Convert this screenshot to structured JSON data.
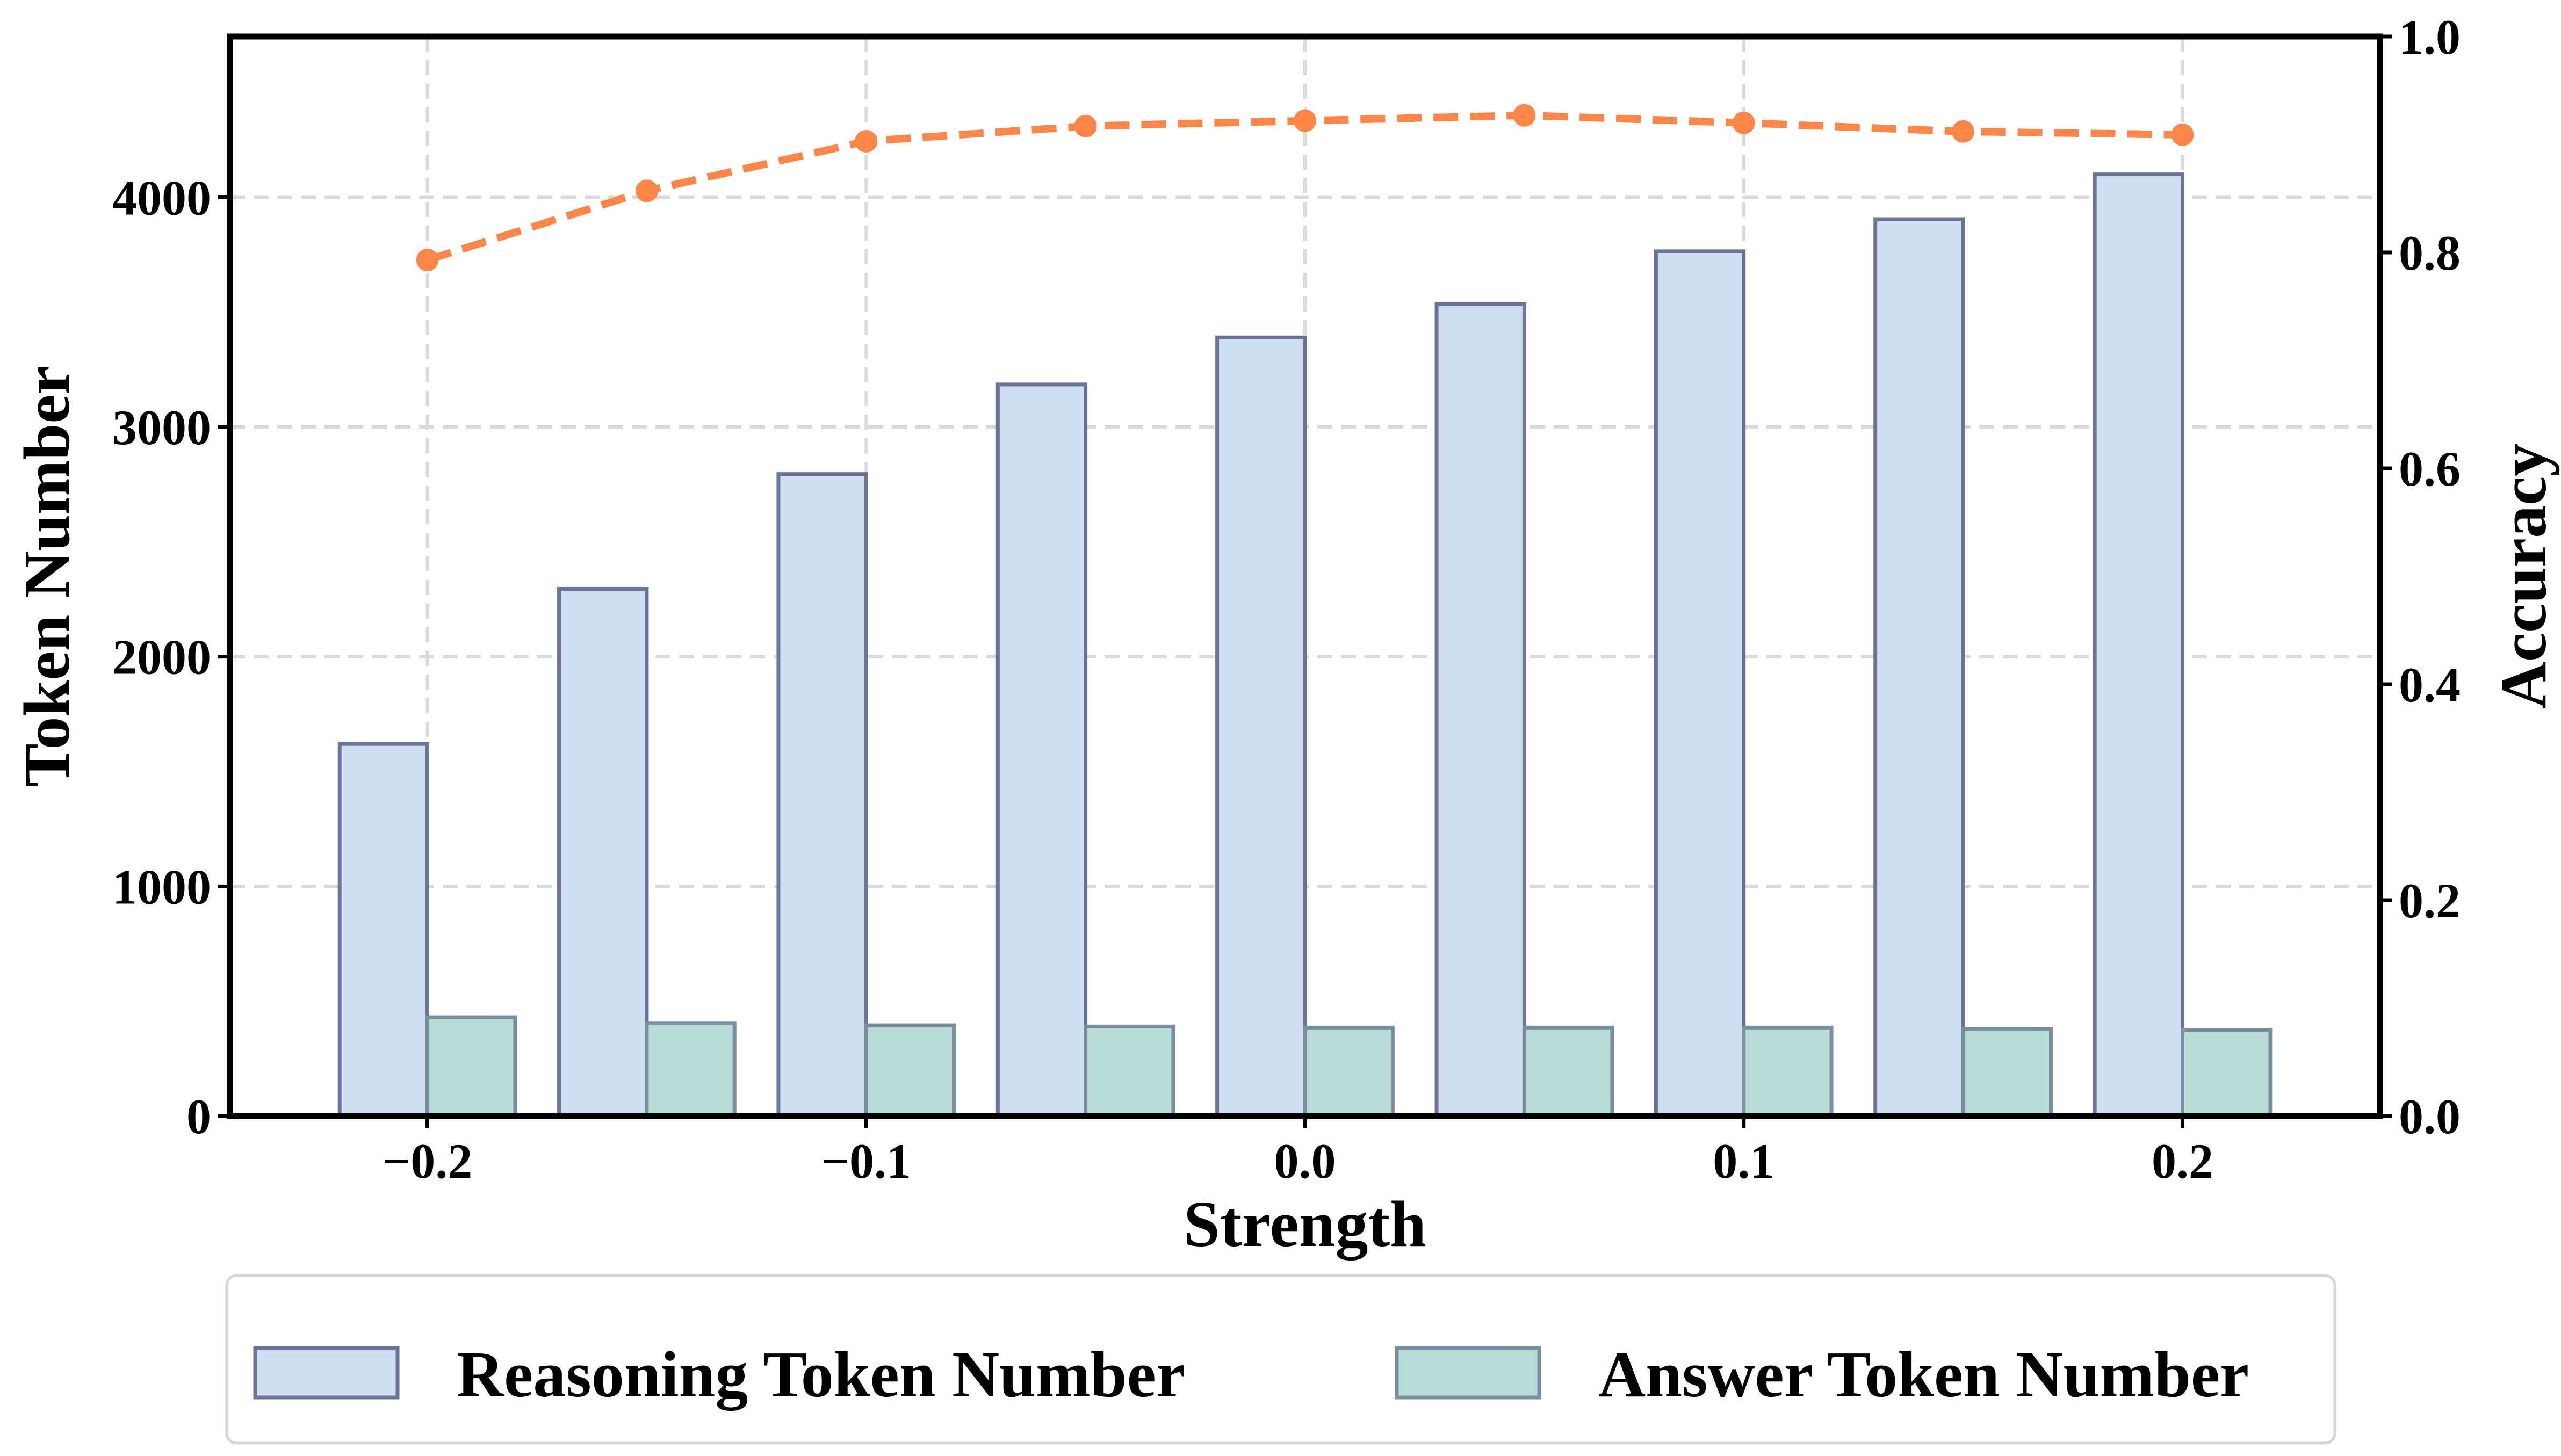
{
  "chart_data": {
    "type": "bar",
    "xlabel": "Strength",
    "ylabel": "Token Number",
    "ylabel_right": "Accuracy",
    "x": [
      -0.2,
      -0.15,
      -0.1,
      -0.05,
      0.0,
      0.05,
      0.1,
      0.15,
      0.2
    ],
    "xlim": [
      -0.245,
      0.245
    ],
    "ylim": [
      0,
      4700
    ],
    "ylim_right": [
      0,
      1.0
    ],
    "x_ticks": [
      {
        "value": -0.2,
        "label": "−0.2"
      },
      {
        "value": -0.1,
        "label": "−0.1"
      },
      {
        "value": 0.0,
        "label": "0.0"
      },
      {
        "value": 0.1,
        "label": "0.1"
      },
      {
        "value": 0.2,
        "label": "0.2"
      }
    ],
    "y_ticks": [
      {
        "value": 0,
        "label": "0"
      },
      {
        "value": 1000,
        "label": "1000"
      },
      {
        "value": 2000,
        "label": "2000"
      },
      {
        "value": 3000,
        "label": "3000"
      },
      {
        "value": 4000,
        "label": "4000"
      }
    ],
    "y_ticks_right": [
      {
        "value": 0.0,
        "label": "0.0"
      },
      {
        "value": 0.2,
        "label": "0.2"
      },
      {
        "value": 0.4,
        "label": "0.4"
      },
      {
        "value": 0.6,
        "label": "0.6"
      },
      {
        "value": 0.8,
        "label": "0.8"
      },
      {
        "value": 1.0,
        "label": "1.0"
      }
    ],
    "grid": true,
    "legend_position": "bottom",
    "series": [
      {
        "name": "Reasoning Token Number",
        "type": "bar",
        "axis": "left",
        "color": "#cfdff1",
        "edge_color": "#6b7496",
        "values": [
          1620,
          2295,
          2795,
          3185,
          3390,
          3535,
          3765,
          3905,
          4100
        ]
      },
      {
        "name": "Answer Token Number",
        "type": "bar",
        "axis": "left",
        "color": "#b9dbd6",
        "edge_color": "#7b8fa0",
        "values": [
          430,
          405,
          395,
          390,
          385,
          385,
          385,
          380,
          375
        ]
      },
      {
        "type": "line",
        "axis": "right",
        "color": "#ff8548",
        "line_style": "dashed",
        "values": [
          0.793,
          0.857,
          0.903,
          0.917,
          0.922,
          0.927,
          0.92,
          0.912,
          0.909
        ]
      }
    ]
  }
}
